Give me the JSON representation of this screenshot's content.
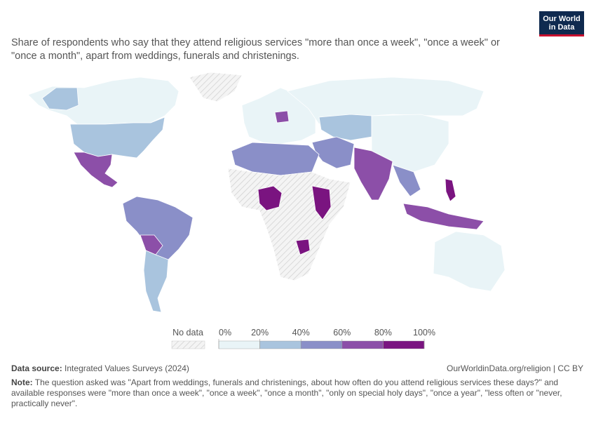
{
  "header": {
    "title": "Share of respondents who say that they attend religious services \"more than once a week\", \"once a week\" or \"once a month\", apart from weddings, funerals and christenings.",
    "logo": [
      "Our World",
      "in Data"
    ]
  },
  "legend": {
    "no_data": "No data",
    "ticks": [
      {
        "value": 0,
        "label": "0%"
      },
      {
        "value": 20,
        "label": "20%"
      },
      {
        "value": 40,
        "label": "40%"
      },
      {
        "value": 60,
        "label": "60%"
      },
      {
        "value": 80,
        "label": "80%"
      },
      {
        "value": 100,
        "label": "100%"
      }
    ],
    "colors": [
      "#e9f4f7",
      "#a9c4de",
      "#8a8fc8",
      "#8c4fa8",
      "#7a1480"
    ]
  },
  "footer": {
    "source_label": "Data source:",
    "source": "Integrated Values Surveys (2024)",
    "url": "OurWorldinData.org/religion | CC BY",
    "note_label": "Note:",
    "note": "The question asked was \"Apart from weddings, funerals and christenings, about how often do you attend religious services these days?\" and available responses were \"more than once a week\", \"once a week\", \"once a month\", \"only on special holy days\", \"once a year\", \"less often or \"never, practically never\"."
  }
}
